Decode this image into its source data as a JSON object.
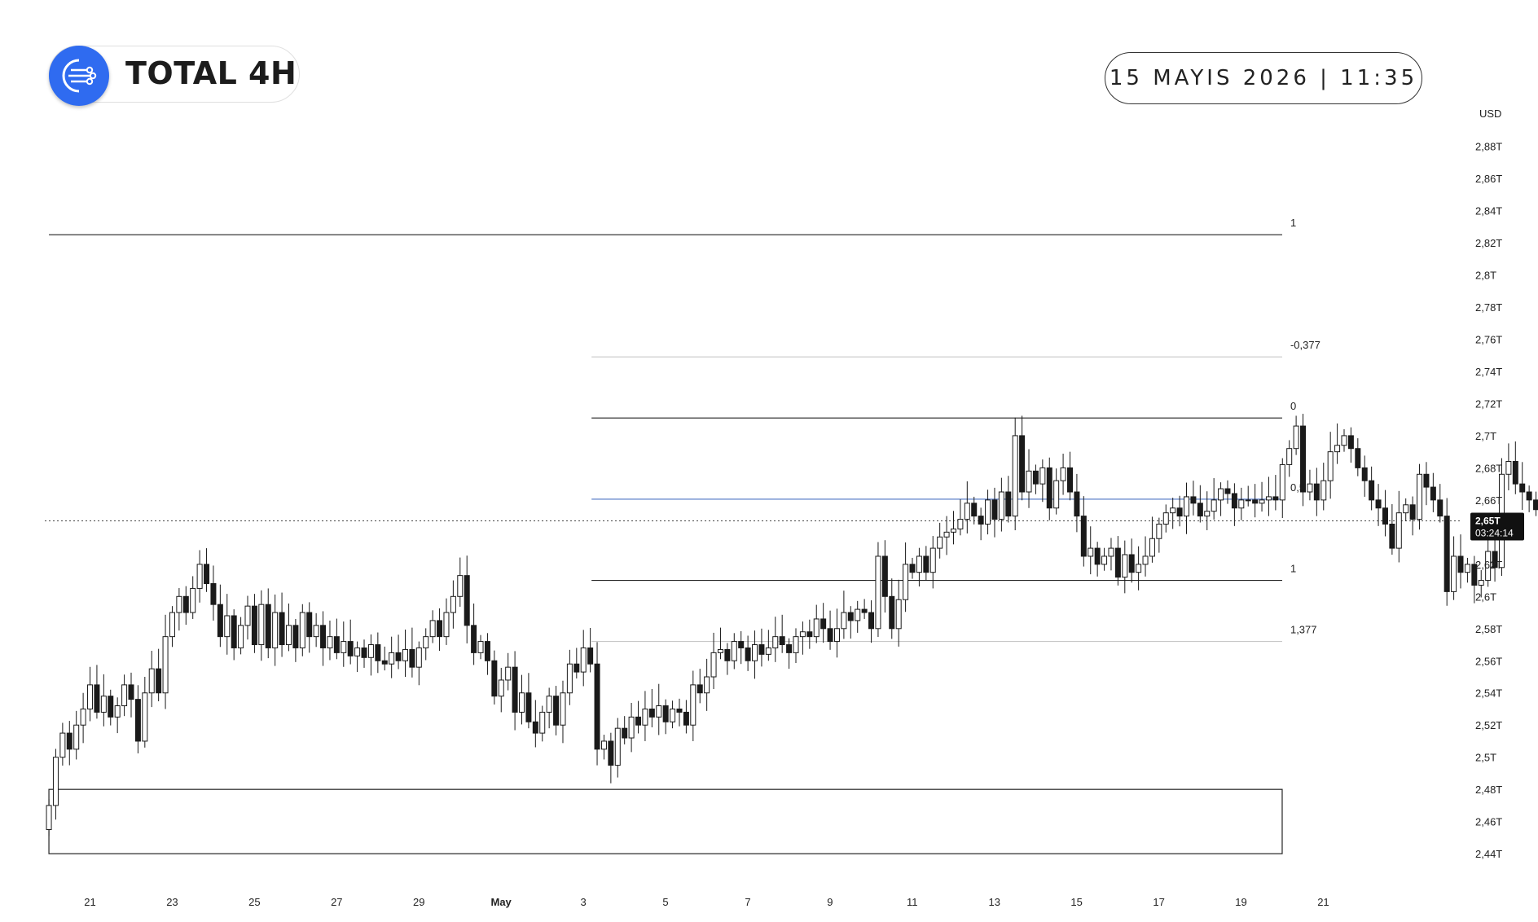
{
  "header": {
    "title": "TOTAL 4H",
    "logo_icon": "network-globe-icon",
    "date": "15 MAYIS 2026 | 11:35"
  },
  "colors": {
    "logo_bg": "#2f6bf0",
    "mid_line": "#5b7fc9",
    "faint_line": "#c8c8c8",
    "candle": "#1a1a1a",
    "price_tag_bg": "#111111"
  },
  "chart_data": {
    "type": "candlestick",
    "currency": "USD",
    "y_unit": "T",
    "ylim": [
      2.435,
      2.895
    ],
    "y_ticks": [
      "2,88T",
      "2,86T",
      "2,84T",
      "2,82T",
      "2,8T",
      "2,78T",
      "2,76T",
      "2,74T",
      "2,72T",
      "2,7T",
      "2,68T",
      "2,66T",
      "2,64T",
      "2,62T",
      "2,6T",
      "2,58T",
      "2,56T",
      "2,54T",
      "2,52T",
      "2,5T",
      "2,48T",
      "2,46T",
      "2,44T"
    ],
    "y_tick_values": [
      2.88,
      2.86,
      2.84,
      2.82,
      2.8,
      2.78,
      2.76,
      2.74,
      2.72,
      2.7,
      2.68,
      2.66,
      2.64,
      2.62,
      2.6,
      2.58,
      2.56,
      2.54,
      2.52,
      2.5,
      2.48,
      2.46,
      2.44
    ],
    "x_ticks": [
      "21",
      "23",
      "25",
      "27",
      "29",
      "May",
      "3",
      "5",
      "7",
      "9",
      "11",
      "13",
      "15",
      "17",
      "19",
      "21"
    ],
    "x_tick_days": [
      0,
      2,
      4,
      6,
      8,
      10,
      12,
      14,
      16,
      18,
      20,
      22,
      24,
      26,
      28,
      30
    ],
    "x_domain_days": [
      -1.1,
      31.2
    ],
    "current_price": {
      "label": "2,65T",
      "countdown": "03:24:14",
      "value": 2.647
    },
    "fib_levels": [
      {
        "label": "1",
        "value": 2.825,
        "x_start_day": -1,
        "x_end_day": 29,
        "style": "solid"
      },
      {
        "label": "-0,377",
        "value": 2.749,
        "x_start_day": 12.2,
        "x_end_day": 29,
        "style": "faint"
      },
      {
        "label": "0",
        "value": 2.711,
        "x_start_day": 12.2,
        "x_end_day": 29,
        "style": "solid"
      },
      {
        "label": "0,5",
        "value": 2.6605,
        "x_start_day": 12.2,
        "x_end_day": 29,
        "style": "blue"
      },
      {
        "label": "1",
        "value": 2.61,
        "x_start_day": 12.2,
        "x_end_day": 29,
        "style": "solid"
      },
      {
        "label": "1,377",
        "value": 2.572,
        "x_start_day": 12.2,
        "x_end_day": 29,
        "style": "faint"
      }
    ],
    "support_box": {
      "top": 2.48,
      "bottom": 2.44,
      "x_start_day": -1,
      "x_end_day": 29
    },
    "start_day": -1,
    "step_days": 0.1667,
    "closes": [
      2.47,
      2.5,
      2.515,
      2.505,
      2.52,
      2.53,
      2.545,
      2.528,
      2.538,
      2.525,
      2.532,
      2.545,
      2.536,
      2.51,
      2.54,
      2.555,
      2.54,
      2.575,
      2.59,
      2.6,
      2.59,
      2.605,
      2.62,
      2.608,
      2.595,
      2.575,
      2.588,
      2.568,
      2.582,
      2.594,
      2.57,
      2.595,
      2.568,
      2.59,
      2.57,
      2.582,
      2.568,
      2.59,
      2.575,
      2.582,
      2.568,
      2.575,
      2.565,
      2.572,
      2.563,
      2.568,
      2.562,
      2.57,
      2.56,
      2.558,
      2.565,
      2.56,
      2.567,
      2.556,
      2.568,
      2.575,
      2.585,
      2.575,
      2.59,
      2.6,
      2.613,
      2.582,
      2.565,
      2.572,
      2.56,
      2.538,
      2.548,
      2.556,
      2.528,
      2.54,
      2.522,
      2.515,
      2.528,
      2.538,
      2.52,
      2.54,
      2.558,
      2.553,
      2.568,
      2.558,
      2.505,
      2.51,
      2.495,
      2.518,
      2.512,
      2.525,
      2.52,
      2.53,
      2.525,
      2.532,
      2.522,
      2.53,
      2.528,
      2.52,
      2.545,
      2.54,
      2.55,
      2.565,
      2.567,
      2.56,
      2.572,
      2.568,
      2.56,
      2.57,
      2.564,
      2.568,
      2.575,
      2.57,
      2.565,
      2.575,
      2.578,
      2.575,
      2.586,
      2.58,
      2.572,
      2.58,
      2.59,
      2.585,
      2.592,
      2.59,
      2.58,
      2.625,
      2.6,
      2.58,
      2.598,
      2.62,
      2.615,
      2.625,
      2.615,
      2.63,
      2.637,
      2.64,
      2.642,
      2.648,
      2.658,
      2.65,
      2.645,
      2.66,
      2.648,
      2.665,
      2.65,
      2.7,
      2.665,
      2.678,
      2.67,
      2.68,
      2.655,
      2.672,
      2.68,
      2.665,
      2.65,
      2.625,
      2.63,
      2.62,
      2.625,
      2.63,
      2.612,
      2.626,
      2.615,
      2.62,
      2.625,
      2.636,
      2.645,
      2.652,
      2.655,
      2.65,
      2.662,
      2.658,
      2.65,
      2.653,
      2.66,
      2.667,
      2.664,
      2.655,
      2.66,
      2.66,
      2.658,
      2.66,
      2.662,
      2.66,
      2.682,
      2.692,
      2.706,
      2.665,
      2.67,
      2.66,
      2.672,
      2.69,
      2.694,
      2.7,
      2.692,
      2.68,
      2.672,
      2.66,
      2.655,
      2.645,
      2.63,
      2.652,
      2.657,
      2.648,
      2.676,
      2.668,
      2.66,
      2.65,
      2.603,
      2.625,
      2.615,
      2.62,
      2.607,
      2.61,
      2.628,
      2.618,
      2.676,
      2.684,
      2.67,
      2.665,
      2.66,
      2.654,
      2.648
    ]
  }
}
